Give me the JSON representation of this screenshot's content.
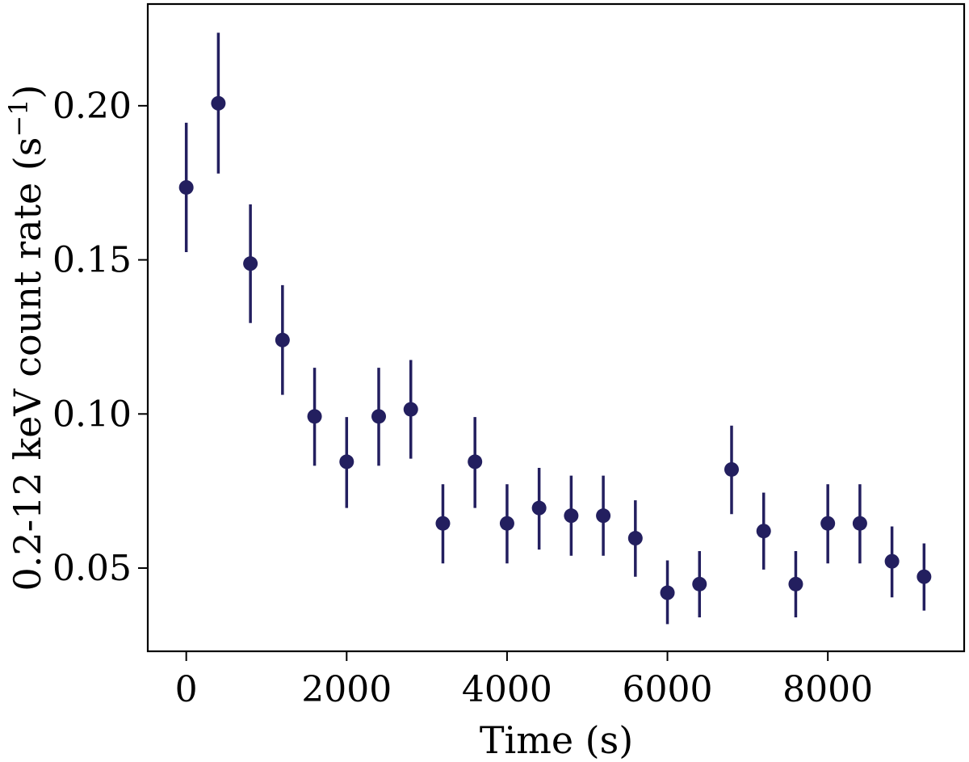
{
  "chart_data": {
    "type": "scatter",
    "xlabel": "Time (s)",
    "ylabel": "0.2-12 keV count rate (s",
    "ylabel_sup": "−1",
    "ylabel_close": ")",
    "xlim": [
      -480,
      9700
    ],
    "ylim": [
      0.023,
      0.233
    ],
    "xticks": [
      0,
      2000,
      4000,
      6000,
      8000
    ],
    "xtick_labels": [
      "0",
      "2000",
      "4000",
      "6000",
      "8000"
    ],
    "yticks": [
      0.05,
      0.1,
      0.15,
      0.2
    ],
    "ytick_labels": [
      "0.05",
      "0.10",
      "0.15",
      "0.20"
    ],
    "grid": false,
    "marker_color": "#231f5f",
    "points": [
      {
        "x": 0,
        "y": 0.1735,
        "lo": 0.1525,
        "hi": 0.1945
      },
      {
        "x": 400,
        "y": 0.2008,
        "lo": 0.178,
        "hi": 0.2237
      },
      {
        "x": 800,
        "y": 0.1488,
        "lo": 0.1295,
        "hi": 0.168
      },
      {
        "x": 1200,
        "y": 0.124,
        "lo": 0.1062,
        "hi": 0.1418
      },
      {
        "x": 1600,
        "y": 0.0992,
        "lo": 0.0832,
        "hi": 0.115
      },
      {
        "x": 2000,
        "y": 0.0845,
        "lo": 0.0695,
        "hi": 0.099
      },
      {
        "x": 2400,
        "y": 0.0992,
        "lo": 0.0832,
        "hi": 0.115
      },
      {
        "x": 2800,
        "y": 0.1015,
        "lo": 0.0855,
        "hi": 0.1175
      },
      {
        "x": 3200,
        "y": 0.0645,
        "lo": 0.0515,
        "hi": 0.0772
      },
      {
        "x": 3600,
        "y": 0.0845,
        "lo": 0.0695,
        "hi": 0.099
      },
      {
        "x": 4000,
        "y": 0.0645,
        "lo": 0.0515,
        "hi": 0.0772
      },
      {
        "x": 4400,
        "y": 0.0695,
        "lo": 0.056,
        "hi": 0.0825
      },
      {
        "x": 4800,
        "y": 0.067,
        "lo": 0.054,
        "hi": 0.08
      },
      {
        "x": 5200,
        "y": 0.067,
        "lo": 0.054,
        "hi": 0.08
      },
      {
        "x": 5600,
        "y": 0.0597,
        "lo": 0.0472,
        "hi": 0.072
      },
      {
        "x": 6000,
        "y": 0.042,
        "lo": 0.0318,
        "hi": 0.0525
      },
      {
        "x": 6400,
        "y": 0.0448,
        "lo": 0.034,
        "hi": 0.0555
      },
      {
        "x": 6800,
        "y": 0.082,
        "lo": 0.0675,
        "hi": 0.0962
      },
      {
        "x": 7200,
        "y": 0.062,
        "lo": 0.0495,
        "hi": 0.0745
      },
      {
        "x": 7600,
        "y": 0.0448,
        "lo": 0.034,
        "hi": 0.0555
      },
      {
        "x": 8000,
        "y": 0.0645,
        "lo": 0.0515,
        "hi": 0.0772
      },
      {
        "x": 8400,
        "y": 0.0645,
        "lo": 0.0515,
        "hi": 0.0772
      },
      {
        "x": 8800,
        "y": 0.0522,
        "lo": 0.0405,
        "hi": 0.0635
      },
      {
        "x": 9200,
        "y": 0.0472,
        "lo": 0.0362,
        "hi": 0.058
      }
    ]
  }
}
